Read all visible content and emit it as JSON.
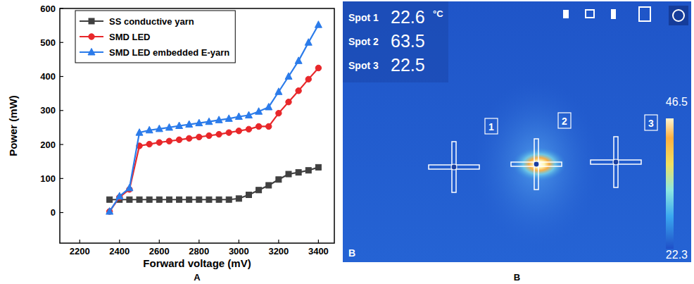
{
  "chart_data": {
    "type": "line",
    "x_label": "Forward voltage (mV)",
    "y_label": "Power (mW)",
    "x": [
      2350,
      2400,
      2450,
      2500,
      2550,
      2600,
      2650,
      2700,
      2750,
      2800,
      2850,
      2900,
      2950,
      3000,
      3050,
      3100,
      3150,
      3200,
      3250,
      3300,
      3350,
      3400
    ],
    "series": [
      {
        "name": "SS conductive yarn",
        "color": "#404040",
        "marker": "square",
        "values": [
          38,
          38,
          38,
          38,
          38,
          38,
          38,
          38,
          38,
          38,
          38,
          38,
          38,
          41,
          52,
          66,
          80,
          97,
          113,
          118,
          124,
          133
        ]
      },
      {
        "name": "SMD LED",
        "color": "#e8272a",
        "marker": "circle",
        "values": [
          3,
          45,
          68,
          196,
          201,
          206,
          210,
          214,
          218,
          222,
          226,
          230,
          235,
          240,
          245,
          253,
          253,
          292,
          325,
          358,
          392,
          425
        ]
      },
      {
        "name": "SMD LED embedded E-yarn",
        "color": "#2b7bea",
        "marker": "triangle",
        "values": [
          3,
          48,
          72,
          235,
          242,
          246,
          250,
          255,
          259,
          263,
          267,
          272,
          276,
          282,
          286,
          297,
          310,
          355,
          400,
          446,
          500,
          552
        ]
      }
    ],
    "xlim": [
      2100,
      3480
    ],
    "xticks": [
      2200,
      2400,
      2600,
      2800,
      3000,
      3200,
      3400
    ],
    "ylim": [
      -90,
      600
    ],
    "yticks": [
      0,
      100,
      200,
      300,
      400,
      500,
      600
    ],
    "grid": false,
    "legend": "upper left"
  },
  "panel_b": {
    "readings": [
      {
        "label": "Spot 1",
        "value": 22.6
      },
      {
        "label": "Spot 2",
        "value": 63.5
      },
      {
        "label": "Spot 3",
        "value": 22.5
      }
    ],
    "unit": "°C",
    "scale_max": 46.5,
    "scale_min": 22.3,
    "markers": [
      "1",
      "2",
      "3"
    ],
    "corner_label": "B"
  },
  "panel_labels": [
    "A",
    "B"
  ]
}
